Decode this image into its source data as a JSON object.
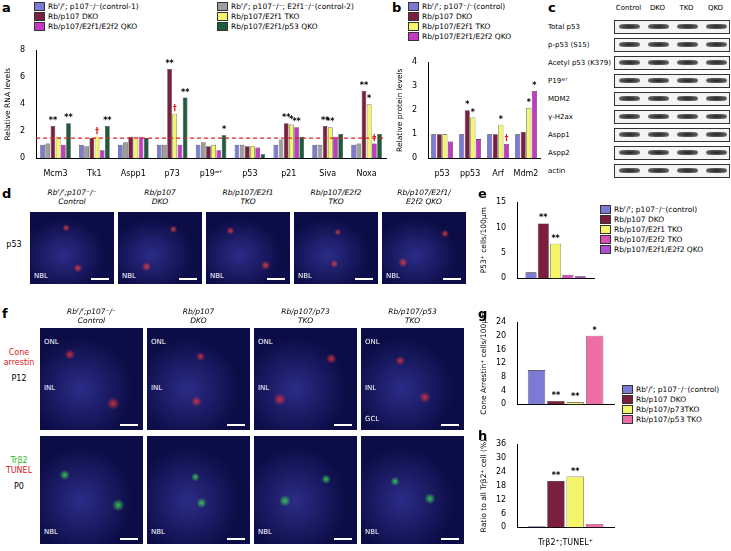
{
  "chart_data": [
    {
      "title": "a",
      "type": "bar",
      "y_label": "Relative RNA levels",
      "categories": [
        "Mcm3",
        "Tk1",
        "Aspp1",
        "p73",
        "p19ᵃʳᶠ",
        "p53",
        "p21",
        "Siva",
        "Noxa"
      ],
      "ylim": [
        0,
        8
      ],
      "yticks": [
        0,
        2,
        4,
        6,
        8
      ],
      "grid": false,
      "legend": "top",
      "reference_line": 1.5,
      "series": [
        {
          "name": "Rbᶠ/ᶠ; p107⁻/⁻(control-1)",
          "color": "#7b7bd6",
          "values": [
            1.0,
            1.0,
            1.0,
            1.0,
            1.0,
            1.0,
            1.0,
            1.0,
            1.0
          ]
        },
        {
          "name": "Rbᶠ/ᶠ; p107⁻/⁻; E2f1⁻/⁻(control-2)",
          "color": "#9e9e9e",
          "values": [
            1.1,
            0.9,
            1.2,
            1.0,
            1.2,
            1.0,
            1.4,
            1.0,
            1.1
          ]
        },
        {
          "name": "Rb/p107 DKO",
          "color": "#7a1f3d",
          "values": [
            2.4,
            1.5,
            1.6,
            6.6,
            0.9,
            0.9,
            2.6,
            2.4,
            5.0
          ],
          "marks": [
            "**",
            null,
            null,
            "**",
            null,
            null,
            "**",
            "**",
            "**"
          ]
        },
        {
          "name": "Rb/p107/E2f1 TKO",
          "color": "#f5f56a",
          "values": [
            1.6,
            1.6,
            1.6,
            3.3,
            1.0,
            0.9,
            2.5,
            2.3,
            4.0
          ],
          "marks": [
            null,
            "†",
            null,
            "†",
            null,
            null,
            "*",
            "**",
            "*"
          ]
        },
        {
          "name": "Rb/p107/E2f1/E2f2 QKO",
          "color": "#c639c6",
          "values": [
            1.0,
            0.6,
            1.6,
            1.0,
            0.6,
            0.8,
            2.3,
            1.6,
            1.1
          ],
          "marks": [
            null,
            null,
            null,
            null,
            null,
            null,
            "**",
            null,
            "†"
          ]
        },
        {
          "name": "Rb/p107/E2f1/p53 QKO",
          "color": "#1e5a3c",
          "values": [
            2.6,
            2.4,
            1.5,
            4.5,
            1.7,
            0.3,
            1.6,
            1.8,
            1.8
          ],
          "marks": [
            "**",
            "**",
            null,
            "**",
            "*",
            null,
            null,
            null,
            null
          ]
        }
      ]
    },
    {
      "title": "b",
      "type": "bar",
      "y_label": "Relative protein levels",
      "categories": [
        "p53",
        "pp53",
        "Arf",
        "Mdm2"
      ],
      "ylim": [
        0,
        4
      ],
      "yticks": [
        0,
        1,
        2,
        3,
        4
      ],
      "grid": false,
      "legend": "top",
      "series": [
        {
          "name": "Rbᶠ/ᶠ; p107⁻/⁻(control)",
          "color": "#7b7bd6",
          "values": [
            1.0,
            1.0,
            1.0,
            1.0
          ]
        },
        {
          "name": "Rb/p107 DKO",
          "color": "#7a1f3d",
          "values": [
            1.0,
            2.0,
            1.0,
            1.1
          ],
          "marks": [
            null,
            "*",
            null,
            null
          ]
        },
        {
          "name": "Rb/p107/E2f1 TKO",
          "color": "#f5f56a",
          "values": [
            1.0,
            1.7,
            1.4,
            2.1
          ],
          "marks": [
            null,
            "*",
            "*",
            "*"
          ]
        },
        {
          "name": "Rb/p107/E2f1/E2f2 QKO",
          "color": "#c639c6",
          "values": [
            0.7,
            0.8,
            0.6,
            2.8
          ],
          "marks": [
            null,
            null,
            "†",
            "*"
          ]
        }
      ]
    },
    {
      "title": "e",
      "type": "bar",
      "y_label": "P53⁺ cells/100μm",
      "categories": [
        null
      ],
      "ylim": [
        0,
        15
      ],
      "yticks": [
        0,
        5,
        10,
        15
      ],
      "grid": false,
      "legend": "right",
      "series": [
        {
          "name": "Rbᶠ/ᶠ; p107⁻/⁻(control)",
          "color": "#7b7bd6",
          "values": [
            1.2
          ]
        },
        {
          "name": "Rb/p107 DKO",
          "color": "#7a1f3d",
          "values": [
            10.8
          ],
          "marks": [
            "**"
          ]
        },
        {
          "name": "Rb/p107/E2f1 TKO",
          "color": "#f5f56a",
          "values": [
            6.8
          ],
          "marks": [
            "**"
          ]
        },
        {
          "name": "Rb/p107/E2f2 TKO",
          "color": "#d94fb4",
          "values": [
            0.7
          ]
        },
        {
          "name": "Rb/p107/E2f1/E2f2 QKO",
          "color": "#b04fd0",
          "values": [
            0.4
          ]
        }
      ]
    },
    {
      "title": "g",
      "type": "bar",
      "y_label": "Cone Arrestin⁺ cells/100μm",
      "categories": [
        null
      ],
      "ylim": [
        0,
        24
      ],
      "yticks": [
        0,
        4,
        8,
        12,
        16,
        20,
        24
      ],
      "grid": false,
      "series": [
        {
          "color": "#7b7bd6",
          "values": [
            10
          ]
        },
        {
          "color": "#7a1f3d",
          "values": [
            1.0
          ],
          "marks": [
            "**"
          ]
        },
        {
          "color": "#f5f56a",
          "values": [
            0.6
          ],
          "marks": [
            "**"
          ]
        },
        {
          "color": "#ee6fa5",
          "values": [
            20
          ],
          "marks": [
            "*"
          ]
        }
      ]
    },
    {
      "title": "h",
      "type": "bar",
      "y_label": "Ratio to all Trβ2⁺ cell (%)",
      "categories": [
        "Trβ2⁺;TUNEL⁺"
      ],
      "ylim": [
        0,
        36
      ],
      "yticks": [
        0,
        6,
        12,
        18,
        24,
        30,
        36
      ],
      "grid": false,
      "legend": "right",
      "series": [
        {
          "name": "Rbᶠ/ᶠ; p107⁻/⁻(control)",
          "color": "#7b7bd6",
          "values": [
            0.5
          ]
        },
        {
          "name": "Rb/p107 DKO",
          "color": "#7a1f3d",
          "values": [
            20
          ],
          "marks": [
            "**"
          ]
        },
        {
          "name": "Rb/p107/p73TKO",
          "color": "#f5f56a",
          "values": [
            22
          ],
          "marks": [
            "**"
          ]
        },
        {
          "name": "Rb/p107/p53 TKO",
          "color": "#ee6fa5",
          "values": [
            1.5
          ]
        }
      ]
    }
  ],
  "blot": {
    "title": "c",
    "lanes": [
      "Control",
      "DKO",
      "TKO",
      "QKO"
    ],
    "rows": [
      "Total p53",
      "p-p53 (S15)",
      "Acetyl p53 (K379)",
      "P19ᵃʳᶠ",
      "MDM2",
      "γ-H2ax",
      "Aspp1",
      "Aspp2",
      "actin"
    ]
  },
  "micrograph_d": {
    "title": "d",
    "row_label": "p53",
    "region_label": "NBL",
    "columns": [
      [
        "Rbᶠ/ᶠ;p107⁻/⁻",
        "Control"
      ],
      [
        "Rb/p107",
        "DKO"
      ],
      [
        "Rb/p107/E2f1",
        "TKO"
      ],
      [
        "Rb/p107/E2f2",
        "TKO"
      ],
      [
        "Rb/p107/E2f1/",
        "E2f2 QKO"
      ]
    ]
  },
  "micrograph_f": {
    "title": "f",
    "columns": [
      [
        "Rbᶠ/ᶠ;p107⁻/⁻",
        "Control"
      ],
      [
        "Rb/p107",
        "DKO"
      ],
      [
        "Rb/p107/p73",
        "TKO"
      ],
      [
        "Rb/p107/p53",
        "TKO"
      ]
    ],
    "rows": [
      {
        "labels": [
          {
            "text": "Cone arrestin",
            "color": "#e02020"
          }
        ],
        "age": "P12",
        "regions": [
          [
            "ONL",
            "INL"
          ],
          [
            "ONL",
            "INL"
          ],
          [
            "ONL",
            "INL"
          ],
          [
            "ONL",
            "INL",
            "GCL"
          ]
        ]
      },
      {
        "labels": [
          {
            "text": "Trβ2",
            "color": "#22bb22"
          },
          {
            "text": "TUNEL",
            "color": "#e02020"
          }
        ],
        "age": "P0",
        "regions": [
          [
            "NBL"
          ],
          [
            "NBL"
          ],
          [
            "NBL"
          ],
          [
            "NBL"
          ]
        ]
      }
    ]
  }
}
